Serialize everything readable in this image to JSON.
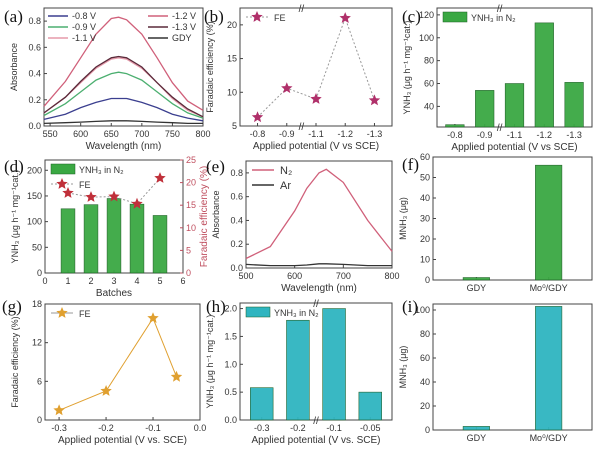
{
  "chart_data": [
    {
      "panel": "(a)",
      "type": "line",
      "xlabel": "Wavelength (nm)",
      "ylabel": "Absorbance",
      "xlim": [
        540,
        800
      ],
      "ylim": [
        0,
        0.9
      ],
      "xticks": [
        550,
        600,
        650,
        700,
        750,
        800
      ],
      "yticks": [
        0.0,
        0.2,
        0.4,
        0.6,
        0.8
      ],
      "ytick_decimals": 1,
      "x": [
        540,
        575,
        600,
        625,
        650,
        662,
        675,
        700,
        725,
        750,
        775,
        800
      ],
      "series": [
        {
          "name": "-0.8 V",
          "color": "#3b3f8f",
          "values": [
            0.05,
            0.09,
            0.14,
            0.18,
            0.21,
            0.21,
            0.21,
            0.18,
            0.14,
            0.09,
            0.06,
            0.04
          ]
        },
        {
          "name": "-0.9 V",
          "color": "#4caf70",
          "values": [
            0.08,
            0.17,
            0.26,
            0.35,
            0.4,
            0.41,
            0.4,
            0.35,
            0.26,
            0.17,
            0.1,
            0.06
          ]
        },
        {
          "name": "-1.1 V",
          "color": "#e59aaa",
          "values": [
            0.1,
            0.22,
            0.33,
            0.44,
            0.51,
            0.52,
            0.51,
            0.44,
            0.33,
            0.21,
            0.12,
            0.07
          ]
        },
        {
          "name": "-1.2 V",
          "color": "#d0607a",
          "values": [
            0.15,
            0.34,
            0.52,
            0.7,
            0.82,
            0.83,
            0.81,
            0.7,
            0.52,
            0.33,
            0.19,
            0.12
          ]
        },
        {
          "name": "-1.3 V",
          "color": "#5a2a3a",
          "values": [
            0.1,
            0.22,
            0.34,
            0.45,
            0.52,
            0.53,
            0.52,
            0.45,
            0.33,
            0.22,
            0.13,
            0.07
          ]
        },
        {
          "name": "GDY",
          "color": "#333333",
          "values": [
            0.02,
            0.025,
            0.03,
            0.035,
            0.04,
            0.04,
            0.04,
            0.035,
            0.03,
            0.025,
            0.02,
            0.02
          ]
        }
      ],
      "legend": "top"
    },
    {
      "panel": "(b)",
      "type": "scatter",
      "xlabel": "Applied potential (V vs SCE)",
      "ylabel": "Faradaic efficiency (%)",
      "ylim": [
        5,
        22.5
      ],
      "categories": [
        "-0.8",
        "-0.9",
        "-1.1",
        "-1.2",
        "-1.3"
      ],
      "yticks": [
        5,
        10,
        15,
        20
      ],
      "axis_break": true,
      "series": [
        {
          "name": "FE",
          "color": "#b0306a",
          "marker": "star",
          "dashed": true,
          "values": [
            6.3,
            10.6,
            9.0,
            21.0,
            8.8
          ]
        }
      ],
      "legend": "top-left"
    },
    {
      "panel": "(c)",
      "type": "bar",
      "xlabel": "Applied potential (V vs SCE)",
      "ylabel": "YNH₃ (μg h⁻¹ mg⁻¹cat.)",
      "ylim": [
        22,
        126
      ],
      "categories": [
        "-0.8",
        "-0.9",
        "-1.1",
        "-1.2",
        "-1.3"
      ],
      "yticks": [
        40,
        60,
        80,
        100,
        120
      ],
      "axis_break": true,
      "series": [
        {
          "name": "YNH₃ in N₂",
          "color": "#3aa843",
          "values": [
            24,
            54,
            60,
            113,
            61
          ]
        }
      ],
      "legend": "top-left"
    },
    {
      "panel": "(d)",
      "type": "bar",
      "xlabel": "Batches",
      "ylabel": "YNH₃ (μg h⁻¹ mg⁻¹cat.)",
      "y2label": "Faradaic efficiency (%)",
      "xlim": [
        0,
        6
      ],
      "xticks": [
        0,
        1,
        2,
        3,
        4,
        5,
        6
      ],
      "ylim": [
        0,
        220
      ],
      "yticks": [
        0,
        50,
        100,
        150,
        200
      ],
      "y2lim": [
        0,
        25
      ],
      "y2ticks": [
        0,
        5,
        10,
        15,
        20,
        25
      ],
      "x": [
        1,
        2,
        3,
        4,
        5
      ],
      "series": [
        {
          "name": "YNH₃ in N₂",
          "color": "#3aa843",
          "values": [
            125,
            133,
            145,
            134,
            112
          ]
        },
        {
          "name": "FE",
          "color": "#c0303a",
          "marker": "star",
          "dashed": true,
          "axis": "y2",
          "values": [
            17.7,
            16.8,
            16.9,
            15.3,
            21.0
          ]
        }
      ],
      "legend": "top-left"
    },
    {
      "panel": "(e)",
      "type": "line",
      "xlabel": "Wavelength (nm)",
      "ylabel": "Absorbance",
      "xlim": [
        500,
        800
      ],
      "ylim": [
        0,
        0.9
      ],
      "xticks": [
        500,
        600,
        700,
        800
      ],
      "yticks": [
        0.0,
        0.2,
        0.4,
        0.6,
        0.8
      ],
      "ytick_decimals": 1,
      "x": [
        500,
        550,
        600,
        625,
        650,
        665,
        700,
        750,
        800
      ],
      "series": [
        {
          "name": "N₂",
          "color": "#d0607a",
          "values": [
            0.08,
            0.18,
            0.48,
            0.67,
            0.8,
            0.83,
            0.72,
            0.4,
            0.14
          ]
        },
        {
          "name": "Ar",
          "color": "#333333",
          "values": [
            0.03,
            0.02,
            0.02,
            0.025,
            0.035,
            0.035,
            0.03,
            0.02,
            0.02
          ]
        }
      ],
      "legend": "top-left"
    },
    {
      "panel": "(f)",
      "type": "bar",
      "xlabel": "",
      "ylabel": "MNH₃ (μg)",
      "ylim": [
        0,
        60
      ],
      "yticks": [
        0,
        10,
        20,
        30,
        40,
        50,
        60
      ],
      "categories": [
        "GDY",
        "Mo⁰/GDY"
      ],
      "series": [
        {
          "color": "#3aa843",
          "values": [
            1.2,
            56
          ]
        }
      ]
    },
    {
      "panel": "(g)",
      "type": "line",
      "xlabel": "Applied potential (V vs. SCE)",
      "ylabel": "Faradaic efficiency (%)",
      "xlim": [
        -0.33,
        0
      ],
      "ylim": [
        0,
        18
      ],
      "xticks": [
        -0.3,
        -0.2,
        -0.1,
        0.0
      ],
      "xtick_decimals": 1,
      "yticks": [
        0,
        6,
        12,
        18
      ],
      "x": [
        -0.3,
        -0.2,
        -0.1,
        -0.05
      ],
      "series": [
        {
          "name": "FE",
          "color": "#e0a030",
          "marker": "star",
          "values": [
            1.5,
            4.5,
            15.8,
            6.7
          ]
        }
      ],
      "legend": "top-left"
    },
    {
      "panel": "(h)",
      "type": "bar",
      "xlabel": "Applied potential (V vs. SCE)",
      "ylabel": "YNH₃ (μg h⁻¹ mg⁻¹cat.)",
      "ylim": [
        0,
        2.1
      ],
      "categories": [
        "-0.3",
        "-0.2",
        "-0.1",
        "-0.05"
      ],
      "yticks": [
        0.0,
        0.5,
        1.0,
        1.5,
        2.0
      ],
      "ytick_decimals": 1,
      "axis_break": true,
      "series": [
        {
          "name": "YNH₃ in N₂",
          "color": "#2fb5c0",
          "values": [
            0.58,
            1.79,
            2.0,
            0.5
          ]
        }
      ],
      "legend": "top-left"
    },
    {
      "panel": "(i)",
      "type": "bar",
      "xlabel": "",
      "ylabel": "MNH₃ (μg)",
      "ylim": [
        0,
        105
      ],
      "yticks": [
        0,
        20,
        40,
        60,
        80,
        100
      ],
      "categories": [
        "GDY",
        "Mo⁰/GDY"
      ],
      "series": [
        {
          "color": "#2fb5c0",
          "values": [
            3,
            103
          ]
        }
      ]
    }
  ]
}
